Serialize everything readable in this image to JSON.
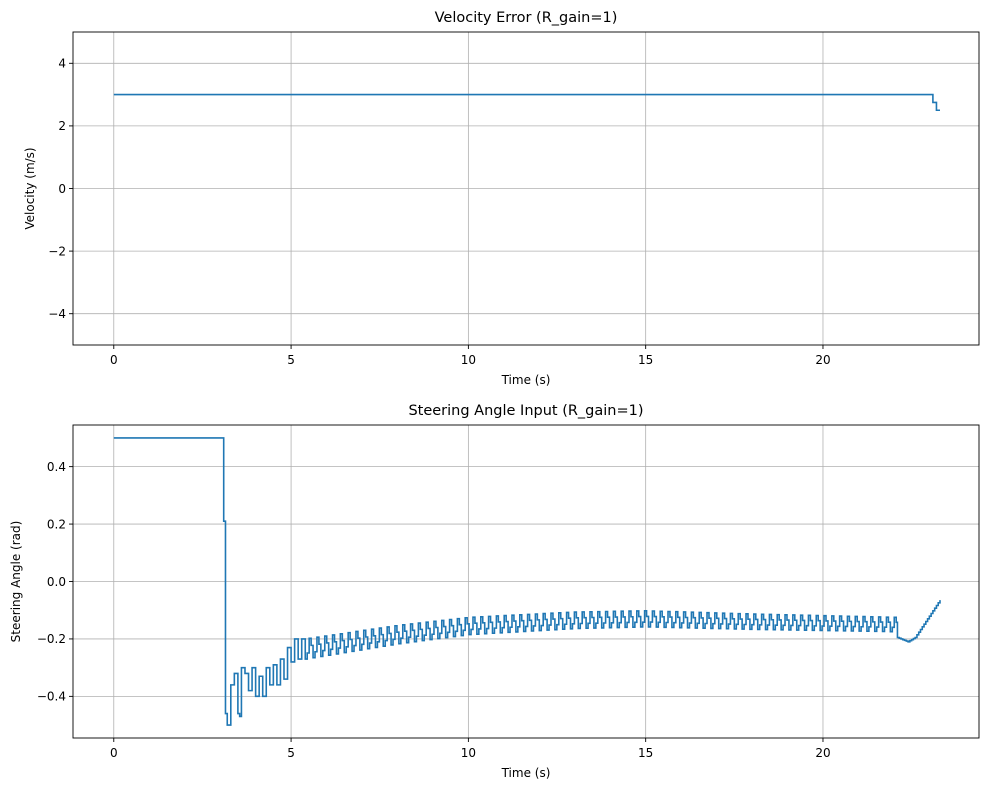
{
  "chart_data": [
    {
      "type": "line",
      "drawstyle": "steps-post",
      "title": "Velocity Error (R_gain=1)",
      "xlabel": "Time (s)",
      "ylabel": "Velocity (m/s)",
      "xlim": [
        -1.15,
        24.4
      ],
      "ylim": [
        -5,
        5
      ],
      "xticks": [
        0,
        5,
        10,
        15,
        20
      ],
      "yticks": [
        -4,
        -2,
        0,
        2,
        4
      ],
      "xtick_labels": [
        "0",
        "5",
        "10",
        "15",
        "20"
      ],
      "ytick_labels": [
        "−4",
        "−2",
        "0",
        "2",
        "4"
      ],
      "grid": true,
      "color": "#1f77b4",
      "series": [
        {
          "x": [
            0,
            23.1,
            23.2,
            23.3
          ],
          "y": [
            3.0,
            2.75,
            2.5,
            2.5
          ]
        }
      ]
    },
    {
      "type": "line",
      "drawstyle": "steps-post",
      "title": "Steering Angle Input (R_gain=1)",
      "xlabel": "Time (s)",
      "ylabel": "Steering Angle (rad)",
      "xlim": [
        -1.15,
        24.4
      ],
      "ylim": [
        -0.545,
        0.545
      ],
      "xticks": [
        0,
        5,
        10,
        15,
        20
      ],
      "yticks": [
        -0.4,
        -0.2,
        0.0,
        0.2,
        0.4
      ],
      "xtick_labels": [
        "0",
        "5",
        "10",
        "15",
        "20"
      ],
      "ytick_labels": [
        "−0.4",
        "−0.2",
        "0.0",
        "0.2",
        "0.4"
      ],
      "grid": true,
      "color": "#1f77b4",
      "series": [
        {
          "x": [
            0,
            3.1,
            3.15,
            3.2,
            3.3,
            3.4,
            3.5,
            3.55,
            3.6,
            3.7,
            3.8,
            3.9,
            4.0,
            4.1,
            4.2,
            4.3,
            4.4,
            4.5,
            4.6,
            4.7,
            4.8,
            4.9,
            5.0,
            5.1,
            5.2,
            5.3,
            5.4
          ],
          "y": [
            0.5,
            0.21,
            -0.46,
            -0.5,
            -0.36,
            -0.32,
            -0.46,
            -0.47,
            -0.3,
            -0.32,
            -0.38,
            -0.3,
            -0.4,
            -0.33,
            -0.4,
            -0.3,
            -0.36,
            -0.29,
            -0.36,
            -0.27,
            -0.34,
            -0.23,
            -0.28,
            -0.2,
            -0.27,
            -0.2,
            -0.27
          ]
        }
      ],
      "oscillation": {
        "x_start": 5.4,
        "x_end": 22.1,
        "period": 0.22,
        "baseline_points": [
          [
            5.4,
            -0.235
          ],
          [
            8.0,
            -0.185
          ],
          [
            10.0,
            -0.155
          ],
          [
            13.0,
            -0.135
          ],
          [
            15.0,
            -0.13
          ],
          [
            18.0,
            -0.14
          ],
          [
            22.1,
            -0.15
          ]
        ],
        "amplitude_points": [
          [
            5.4,
            0.035
          ],
          [
            10.0,
            0.03
          ],
          [
            22.1,
            0.025
          ]
        ]
      },
      "tail": {
        "x": [
          22.1,
          22.4,
          22.6,
          23.3
        ],
        "y": [
          -0.195,
          -0.21,
          -0.195,
          -0.065
        ]
      }
    }
  ]
}
